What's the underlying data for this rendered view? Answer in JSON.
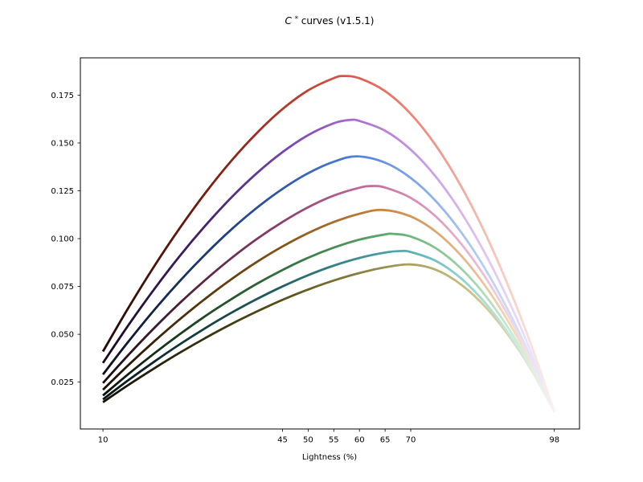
{
  "title": {
    "c": "C",
    "sup": "*",
    "rest": " curves (v1.5.1)",
    "display": "C* curves (v1.5.1)"
  },
  "axes": {
    "xlabel": "Lightness (%)",
    "xlim": [
      5.6,
      102.9
    ],
    "ylim": [
      0.0005,
      0.1945
    ],
    "xticks": [
      10,
      45,
      50,
      55,
      60,
      65,
      70,
      98
    ],
    "xtick_labels": [
      "10",
      "45",
      "50",
      "55",
      "60",
      "65",
      "70",
      "98"
    ],
    "yticks": [
      0.025,
      0.05,
      0.075,
      0.1,
      0.125,
      0.15,
      0.175
    ],
    "ytick_labels": [
      "0.025",
      "0.050",
      "0.075",
      "0.100",
      "0.125",
      "0.150",
      "0.175"
    ]
  },
  "chart_data": {
    "type": "line",
    "title": "C* curves (v1.5.1)",
    "xlabel": "Lightness (%)",
    "ylabel": "",
    "grid": false,
    "legend": "none",
    "x_range": [
      10,
      98
    ],
    "note": "Eight chroma-vs-lightness curves; each line is colored by its own hue ramp from near-black at L=10 through the vivid peak color to near-white at L=98. All curves converge to ~0.0095 at L=98.",
    "series": [
      {
        "name": "olive",
        "peak": {
          "x": 70,
          "y": 0.0865
        },
        "peak_color": "#a9a25c",
        "points": [
          [
            10,
            0.0145
          ],
          [
            15,
            0.0236
          ],
          [
            20,
            0.0322
          ],
          [
            25,
            0.0404
          ],
          [
            30,
            0.0481
          ],
          [
            35,
            0.0553
          ],
          [
            40,
            0.0619
          ],
          [
            45,
            0.068
          ],
          [
            50,
            0.0734
          ],
          [
            55,
            0.0781
          ],
          [
            60,
            0.082
          ],
          [
            65,
            0.085
          ],
          [
            70,
            0.0865
          ],
          [
            75,
            0.0836
          ],
          [
            80,
            0.0756
          ],
          [
            85,
            0.063
          ],
          [
            90,
            0.0459
          ],
          [
            94,
            0.0291
          ],
          [
            98,
            0.0095
          ]
        ],
        "gradient": [
          [
            0,
            "#121005"
          ],
          [
            0.227,
            "#38330f"
          ],
          [
            0.398,
            "#565017"
          ],
          [
            0.682,
            "#a9a25c"
          ],
          [
            0.807,
            "#c6c083"
          ],
          [
            0.909,
            "#ddd8ab"
          ],
          [
            1,
            "#f7f5e4"
          ]
        ]
      },
      {
        "name": "teal",
        "peak": {
          "x": 68,
          "y": 0.0935
        },
        "peak_color": "#51a9ae",
        "points": [
          [
            10,
            0.016
          ],
          [
            15,
            0.0261
          ],
          [
            20,
            0.0357
          ],
          [
            25,
            0.0448
          ],
          [
            30,
            0.0533
          ],
          [
            35,
            0.0612
          ],
          [
            40,
            0.0684
          ],
          [
            45,
            0.075
          ],
          [
            50,
            0.0809
          ],
          [
            55,
            0.0859
          ],
          [
            60,
            0.0899
          ],
          [
            65,
            0.0927
          ],
          [
            68,
            0.0935
          ],
          [
            70,
            0.093
          ],
          [
            75,
            0.0882
          ],
          [
            80,
            0.0788
          ],
          [
            85,
            0.0649
          ],
          [
            90,
            0.0469
          ],
          [
            94,
            0.0295
          ],
          [
            98,
            0.0095
          ]
        ],
        "gradient": [
          [
            0,
            "#081213"
          ],
          [
            0.227,
            "#153f42"
          ],
          [
            0.398,
            "#236163"
          ],
          [
            0.659,
            "#51a9ae"
          ],
          [
            0.784,
            "#8ccfcf"
          ],
          [
            0.898,
            "#c0e6e3"
          ],
          [
            1,
            "#edf8f6"
          ]
        ]
      },
      {
        "name": "green",
        "peak": {
          "x": 66.5,
          "y": 0.1025
        },
        "peak_color": "#60ad70",
        "points": [
          [
            10,
            0.018
          ],
          [
            15,
            0.0293
          ],
          [
            20,
            0.04
          ],
          [
            25,
            0.0501
          ],
          [
            30,
            0.0596
          ],
          [
            35,
            0.0683
          ],
          [
            40,
            0.0764
          ],
          [
            45,
            0.0836
          ],
          [
            50,
            0.09
          ],
          [
            55,
            0.0953
          ],
          [
            60,
            0.0995
          ],
          [
            65,
            0.1022
          ],
          [
            66.5,
            0.1025
          ],
          [
            70,
            0.1011
          ],
          [
            75,
            0.0948
          ],
          [
            80,
            0.0839
          ],
          [
            85,
            0.0687
          ],
          [
            90,
            0.0492
          ],
          [
            94,
            0.0306
          ],
          [
            98,
            0.0095
          ]
        ],
        "gradient": [
          [
            0,
            "#0a1207"
          ],
          [
            0.227,
            "#1f4a26"
          ],
          [
            0.398,
            "#33703e"
          ],
          [
            0.642,
            "#60ad70"
          ],
          [
            0.773,
            "#92cc9b"
          ],
          [
            0.886,
            "#c4e5c7"
          ],
          [
            1,
            "#f0f9f0"
          ]
        ]
      },
      {
        "name": "orange",
        "peak": {
          "x": 64.5,
          "y": 0.115
        },
        "peak_color": "#c8843f",
        "points": [
          [
            10,
            0.021
          ],
          [
            15,
            0.034
          ],
          [
            20,
            0.0463
          ],
          [
            25,
            0.0579
          ],
          [
            30,
            0.0687
          ],
          [
            35,
            0.0787
          ],
          [
            40,
            0.0878
          ],
          [
            45,
            0.0959
          ],
          [
            50,
            0.1029
          ],
          [
            55,
            0.1087
          ],
          [
            60,
            0.113
          ],
          [
            64.5,
            0.115
          ],
          [
            70,
            0.1116
          ],
          [
            75,
            0.1034
          ],
          [
            80,
            0.0906
          ],
          [
            85,
            0.0735
          ],
          [
            90,
            0.0522
          ],
          [
            94,
            0.0322
          ],
          [
            98,
            0.0095
          ]
        ],
        "gradient": [
          [
            0,
            "#170e04"
          ],
          [
            0.227,
            "#59370e"
          ],
          [
            0.398,
            "#835417"
          ],
          [
            0.619,
            "#c8843f"
          ],
          [
            0.761,
            "#e0ad78"
          ],
          [
            0.886,
            "#efd3ae"
          ],
          [
            1,
            "#faf2e6"
          ]
        ]
      },
      {
        "name": "rose",
        "peak": {
          "x": 62.5,
          "y": 0.1275
        },
        "peak_color": "#c76da0",
        "points": [
          [
            10,
            0.0245
          ],
          [
            15,
            0.0393
          ],
          [
            20,
            0.0533
          ],
          [
            25,
            0.0664
          ],
          [
            30,
            0.0785
          ],
          [
            35,
            0.0897
          ],
          [
            40,
            0.0998
          ],
          [
            45,
            0.1087
          ],
          [
            50,
            0.1164
          ],
          [
            55,
            0.1225
          ],
          [
            60,
            0.1266
          ],
          [
            62.5,
            0.1275
          ],
          [
            65,
            0.1267
          ],
          [
            70,
            0.1213
          ],
          [
            75,
            0.1113
          ],
          [
            80,
            0.0967
          ],
          [
            85,
            0.0779
          ],
          [
            90,
            0.0549
          ],
          [
            94,
            0.0334
          ],
          [
            98,
            0.0095
          ]
        ],
        "gradient": [
          [
            0,
            "#1a0b12"
          ],
          [
            0.227,
            "#5e2644"
          ],
          [
            0.398,
            "#8d3f6b"
          ],
          [
            0.597,
            "#c76da0"
          ],
          [
            0.739,
            "#e19cc0"
          ],
          [
            0.875,
            "#f2cade"
          ],
          [
            1,
            "#fbf1f6"
          ]
        ]
      },
      {
        "name": "blue",
        "peak": {
          "x": 59.5,
          "y": 0.143
        },
        "peak_color": "#4f82dc",
        "points": [
          [
            10,
            0.029
          ],
          [
            15,
            0.0463
          ],
          [
            20,
            0.0627
          ],
          [
            25,
            0.0779
          ],
          [
            30,
            0.0919
          ],
          [
            35,
            0.1047
          ],
          [
            40,
            0.1161
          ],
          [
            45,
            0.126
          ],
          [
            50,
            0.1342
          ],
          [
            55,
            0.1402
          ],
          [
            59.5,
            0.143
          ],
          [
            65,
            0.1397
          ],
          [
            70,
            0.1317
          ],
          [
            75,
            0.1193
          ],
          [
            80,
            0.1027
          ],
          [
            85,
            0.082
          ],
          [
            90,
            0.0572
          ],
          [
            94,
            0.0346
          ],
          [
            98,
            0.0095
          ]
        ],
        "gradient": [
          [
            0,
            "#0a0e1a"
          ],
          [
            0.227,
            "#1d3a75"
          ],
          [
            0.398,
            "#2f58ab"
          ],
          [
            0.563,
            "#4f82dc"
          ],
          [
            0.705,
            "#85a9ea"
          ],
          [
            0.852,
            "#bcd0f5"
          ],
          [
            1,
            "#eef3fc"
          ]
        ]
      },
      {
        "name": "purple",
        "peak": {
          "x": 58,
          "y": 0.162
        },
        "peak_color": "#a667d1",
        "points": [
          [
            10,
            0.035
          ],
          [
            15,
            0.0549
          ],
          [
            20,
            0.0736
          ],
          [
            25,
            0.091
          ],
          [
            30,
            0.1069
          ],
          [
            35,
            0.1214
          ],
          [
            40,
            0.1342
          ],
          [
            45,
            0.1452
          ],
          [
            50,
            0.1541
          ],
          [
            55,
            0.1603
          ],
          [
            58,
            0.162
          ],
          [
            60,
            0.1615
          ],
          [
            65,
            0.1564
          ],
          [
            70,
            0.1465
          ],
          [
            75,
            0.132
          ],
          [
            80,
            0.113
          ],
          [
            85,
            0.0897
          ],
          [
            90,
            0.0622
          ],
          [
            94,
            0.0372
          ],
          [
            98,
            0.0095
          ]
        ],
        "gradient": [
          [
            0,
            "#150a1f"
          ],
          [
            0.227,
            "#46226e"
          ],
          [
            0.398,
            "#7443ab"
          ],
          [
            0.545,
            "#a667d1"
          ],
          [
            0.705,
            "#c79ae6"
          ],
          [
            0.852,
            "#e0c6f2"
          ],
          [
            1,
            "#f5effb"
          ]
        ]
      },
      {
        "name": "red",
        "peak": {
          "x": 57,
          "y": 0.185
        },
        "peak_color": "#db5246",
        "points": [
          [
            10,
            0.041
          ],
          [
            15,
            0.064
          ],
          [
            20,
            0.0856
          ],
          [
            25,
            0.1056
          ],
          [
            30,
            0.124
          ],
          [
            35,
            0.1406
          ],
          [
            40,
            0.1552
          ],
          [
            45,
            0.1677
          ],
          [
            50,
            0.1775
          ],
          [
            55,
            0.1839
          ],
          [
            57,
            0.185
          ],
          [
            60,
            0.1838
          ],
          [
            65,
            0.1771
          ],
          [
            70,
            0.1652
          ],
          [
            75,
            0.1483
          ],
          [
            80,
            0.1265
          ],
          [
            85,
            0.1
          ],
          [
            90,
            0.0688
          ],
          [
            94,
            0.0406
          ],
          [
            98,
            0.0095
          ]
        ],
        "gradient": [
          [
            0,
            "#1f0a06"
          ],
          [
            0.227,
            "#7a1b10"
          ],
          [
            0.398,
            "#b0372a"
          ],
          [
            0.534,
            "#db5246"
          ],
          [
            0.682,
            "#ee8374"
          ],
          [
            0.852,
            "#f7beb2"
          ],
          [
            1,
            "#fbf2ec"
          ]
        ]
      }
    ]
  }
}
